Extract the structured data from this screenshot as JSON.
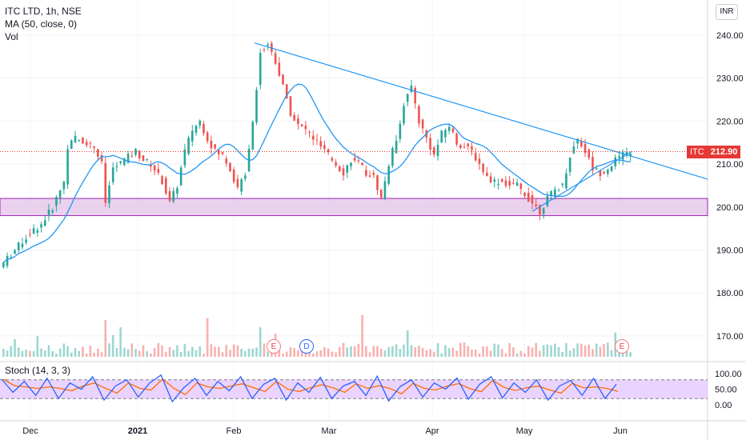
{
  "header": {
    "title": "ITC LTD, 1h, NSE",
    "indicator": "MA (50, close, 0)",
    "volume": "Vol",
    "currency": "INR"
  },
  "price_tag": {
    "symbol": "ITC",
    "value": "212.90"
  },
  "events": {
    "e1": "E",
    "d": "D",
    "e2": "E"
  },
  "stoch": {
    "label": "Stoch (14, 3, 3)"
  },
  "colors": {
    "up": "#26a69a",
    "down": "#ef5350",
    "ma": "#2196f3",
    "trendline": "#2196f3",
    "zone_fill": "#e1bee7",
    "zone_border": "#9c27b0",
    "stoch_k": "#2962ff",
    "stoch_d": "#ff6d00",
    "stoch_band": "#e6c8ff",
    "price_line": "#e53935"
  },
  "chart_data": {
    "type": "candlestick",
    "title": "ITC LTD, 1h, NSE",
    "y_ticks": [
      "240.00",
      "230.00",
      "220.00",
      "210.00",
      "200.00",
      "190.00",
      "180.00",
      "170.00"
    ],
    "x_ticks": [
      "Dec",
      "2021",
      "Feb",
      "Mar",
      "Apr",
      "May",
      "Jun"
    ],
    "stoch_ticks": [
      "100.00",
      "50.00",
      "0.00"
    ],
    "ylim": [
      165,
      245
    ],
    "last_price": 212.9,
    "support_zone": [
      198,
      202
    ],
    "price_path": [
      [
        0,
        186
      ],
      [
        4,
        190
      ],
      [
        8,
        194
      ],
      [
        11,
        196
      ],
      [
        14,
        200
      ],
      [
        17,
        206
      ],
      [
        18,
        214
      ],
      [
        20,
        216
      ],
      [
        23,
        215
      ],
      [
        25,
        214
      ],
      [
        27,
        210
      ],
      [
        28,
        201
      ],
      [
        30,
        209
      ],
      [
        33,
        211
      ],
      [
        36,
        213
      ],
      [
        38,
        211
      ],
      [
        40,
        210
      ],
      [
        43,
        206
      ],
      [
        45,
        201
      ],
      [
        47,
        205
      ],
      [
        49,
        213
      ],
      [
        51,
        218
      ],
      [
        53,
        220
      ],
      [
        55,
        216
      ],
      [
        57,
        213
      ],
      [
        59,
        212
      ],
      [
        61,
        209
      ],
      [
        63,
        204
      ],
      [
        65,
        208
      ],
      [
        67,
        220
      ],
      [
        69,
        236
      ],
      [
        71,
        238
      ],
      [
        73,
        234
      ],
      [
        75,
        228
      ],
      [
        77,
        222
      ],
      [
        79,
        219
      ],
      [
        81,
        218
      ],
      [
        83,
        216
      ],
      [
        85,
        214
      ],
      [
        87,
        212
      ],
      [
        89,
        210
      ],
      [
        91,
        208
      ],
      [
        93,
        211
      ],
      [
        95,
        210
      ],
      [
        97,
        208
      ],
      [
        99,
        207
      ],
      [
        101,
        202
      ],
      [
        103,
        210
      ],
      [
        105,
        216
      ],
      [
        107,
        224
      ],
      [
        109,
        228
      ],
      [
        111,
        220
      ],
      [
        113,
        216
      ],
      [
        115,
        212
      ],
      [
        117,
        217
      ],
      [
        119,
        219
      ],
      [
        121,
        215
      ],
      [
        123,
        214
      ],
      [
        125,
        213
      ],
      [
        127,
        210
      ],
      [
        129,
        207
      ],
      [
        131,
        206
      ],
      [
        133,
        206
      ],
      [
        135,
        205
      ],
      [
        137,
        205
      ],
      [
        139,
        203
      ],
      [
        141,
        201
      ],
      [
        143,
        199
      ],
      [
        145,
        202
      ],
      [
        147,
        204
      ],
      [
        149,
        205
      ],
      [
        151,
        212
      ],
      [
        153,
        216
      ],
      [
        155,
        213
      ],
      [
        157,
        209
      ],
      [
        159,
        208
      ],
      [
        161,
        209
      ],
      [
        163,
        211
      ],
      [
        165,
        212
      ],
      [
        167,
        213
      ]
    ],
    "stoch_path": [
      82,
      40,
      75,
      30,
      85,
      20,
      70,
      50,
      90,
      15,
      60,
      80,
      25,
      70,
      95,
      10,
      55,
      85,
      30,
      75,
      45,
      90,
      20,
      65,
      85,
      15,
      70,
      40,
      88,
      20,
      60,
      75,
      30,
      92,
      12,
      58,
      80,
      25,
      70,
      50,
      86,
      18,
      66,
      90,
      22,
      70,
      40,
      80,
      15,
      60,
      78,
      30,
      85,
      20,
      66
    ]
  }
}
